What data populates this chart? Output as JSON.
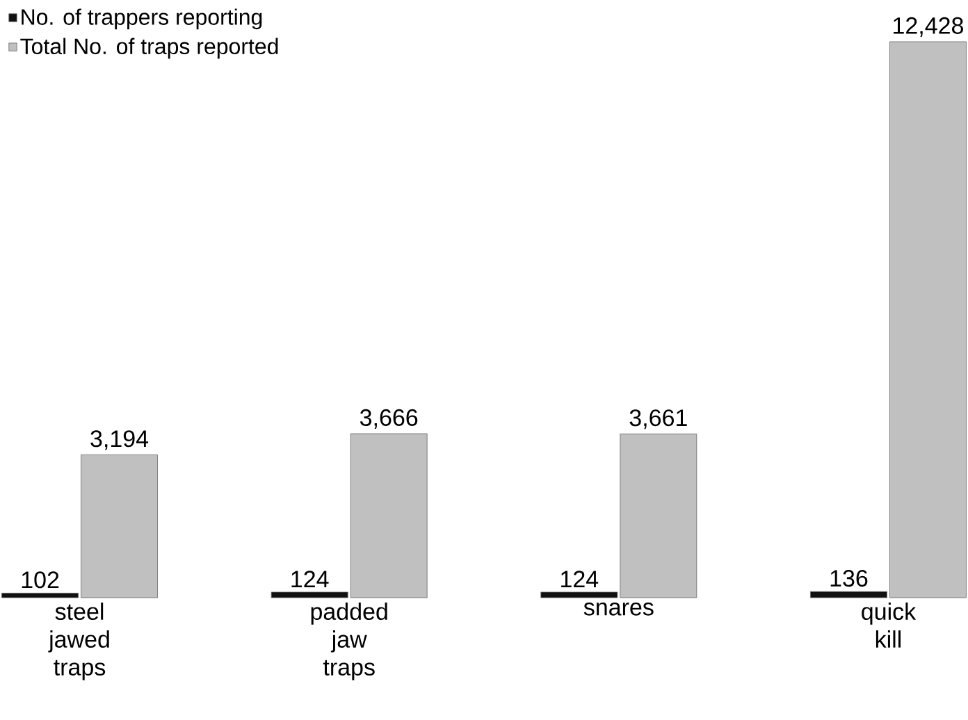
{
  "chart_data": {
    "type": "bar",
    "categories": [
      "steel jawed traps",
      "padded jaw traps",
      "snares",
      "quick kill"
    ],
    "series": [
      {
        "name": "No. of trappers reporting",
        "color": "#111111",
        "values": [
          102,
          124,
          124,
          136
        ],
        "value_labels": [
          "102",
          "124",
          "124",
          "136"
        ]
      },
      {
        "name": "Total No. of traps reported",
        "color": "#c0c0c0",
        "values": [
          3194,
          3666,
          3661,
          12428
        ],
        "value_labels": [
          "3,194",
          "3,666",
          "3,661",
          "12,428"
        ]
      }
    ],
    "legend": "top left"
  }
}
